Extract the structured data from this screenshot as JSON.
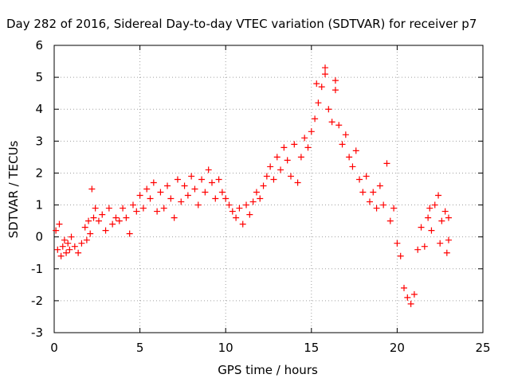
{
  "chart_data": {
    "type": "scatter",
    "title": "Day 282 of 2016, Sidereal Day-to-day VTEC variation (SDTVAR) for receiver p7",
    "xlabel": "GPS time / hours",
    "ylabel": "SDTVAR / TECUs",
    "xlim": [
      0,
      25
    ],
    "ylim": [
      -3,
      6
    ],
    "xticks": [
      0,
      5,
      10,
      15,
      20,
      25
    ],
    "yticks": [
      -3,
      -2,
      -1,
      0,
      1,
      2,
      3,
      4,
      5,
      6
    ],
    "grid": true,
    "legend": "none",
    "marker": "plus",
    "color": "#ff0000",
    "series": [
      {
        "points": [
          [
            0.1,
            0.2
          ],
          [
            0.2,
            -0.4
          ],
          [
            0.3,
            0.4
          ],
          [
            0.4,
            -0.6
          ],
          [
            0.5,
            -0.3
          ],
          [
            0.6,
            -0.1
          ],
          [
            0.7,
            -0.5
          ],
          [
            0.8,
            -0.2
          ],
          [
            0.9,
            -0.4
          ],
          [
            1.0,
            0.0
          ],
          [
            1.2,
            -0.3
          ],
          [
            1.4,
            -0.5
          ],
          [
            1.6,
            -0.2
          ],
          [
            1.8,
            0.3
          ],
          [
            1.9,
            -0.1
          ],
          [
            2.0,
            0.5
          ],
          [
            2.1,
            0.1
          ],
          [
            2.2,
            1.5
          ],
          [
            2.3,
            0.6
          ],
          [
            2.4,
            0.9
          ],
          [
            2.6,
            0.5
          ],
          [
            2.8,
            0.7
          ],
          [
            3.0,
            0.2
          ],
          [
            3.2,
            0.9
          ],
          [
            3.4,
            0.4
          ],
          [
            3.6,
            0.6
          ],
          [
            3.8,
            0.5
          ],
          [
            4.0,
            0.9
          ],
          [
            4.2,
            0.6
          ],
          [
            4.4,
            0.1
          ],
          [
            4.6,
            1.0
          ],
          [
            4.8,
            0.8
          ],
          [
            5.0,
            1.3
          ],
          [
            5.2,
            0.9
          ],
          [
            5.4,
            1.5
          ],
          [
            5.6,
            1.2
          ],
          [
            5.8,
            1.7
          ],
          [
            6.0,
            0.8
          ],
          [
            6.2,
            1.4
          ],
          [
            6.4,
            0.9
          ],
          [
            6.6,
            1.6
          ],
          [
            6.8,
            1.2
          ],
          [
            7.0,
            0.6
          ],
          [
            7.2,
            1.8
          ],
          [
            7.4,
            1.1
          ],
          [
            7.6,
            1.6
          ],
          [
            7.8,
            1.3
          ],
          [
            8.0,
            1.9
          ],
          [
            8.2,
            1.5
          ],
          [
            8.4,
            1.0
          ],
          [
            8.6,
            1.8
          ],
          [
            8.8,
            1.4
          ],
          [
            9.0,
            2.1
          ],
          [
            9.2,
            1.7
          ],
          [
            9.4,
            1.2
          ],
          [
            9.6,
            1.8
          ],
          [
            9.8,
            1.4
          ],
          [
            10.0,
            1.2
          ],
          [
            10.2,
            1.0
          ],
          [
            10.4,
            0.8
          ],
          [
            10.6,
            0.6
          ],
          [
            10.8,
            0.9
          ],
          [
            11.0,
            0.4
          ],
          [
            11.2,
            1.0
          ],
          [
            11.4,
            0.7
          ],
          [
            11.6,
            1.1
          ],
          [
            11.8,
            1.4
          ],
          [
            12.0,
            1.2
          ],
          [
            12.2,
            1.6
          ],
          [
            12.4,
            1.9
          ],
          [
            12.6,
            2.2
          ],
          [
            12.8,
            1.8
          ],
          [
            13.0,
            2.5
          ],
          [
            13.2,
            2.1
          ],
          [
            13.4,
            2.8
          ],
          [
            13.6,
            2.4
          ],
          [
            13.8,
            1.9
          ],
          [
            14.0,
            2.9
          ],
          [
            14.2,
            1.7
          ],
          [
            14.4,
            2.5
          ],
          [
            14.6,
            3.1
          ],
          [
            14.8,
            2.8
          ],
          [
            15.0,
            3.3
          ],
          [
            15.2,
            3.7
          ],
          [
            15.4,
            4.2
          ],
          [
            15.6,
            4.7
          ],
          [
            15.8,
            5.1
          ],
          [
            16.0,
            4.0
          ],
          [
            16.2,
            3.6
          ],
          [
            16.4,
            4.6
          ],
          [
            16.6,
            3.5
          ],
          [
            16.8,
            2.9
          ],
          [
            17.0,
            3.2
          ],
          [
            17.2,
            2.5
          ],
          [
            17.4,
            2.2
          ],
          [
            17.6,
            2.7
          ],
          [
            17.8,
            1.8
          ],
          [
            18.0,
            1.4
          ],
          [
            18.2,
            1.9
          ],
          [
            18.4,
            1.1
          ],
          [
            18.6,
            1.4
          ],
          [
            18.8,
            0.9
          ],
          [
            19.0,
            1.6
          ],
          [
            19.2,
            1.0
          ],
          [
            19.4,
            2.3
          ],
          [
            19.6,
            0.5
          ],
          [
            19.8,
            0.9
          ],
          [
            20.0,
            -0.2
          ],
          [
            20.2,
            -0.6
          ],
          [
            20.4,
            -1.6
          ],
          [
            20.6,
            -1.9
          ],
          [
            20.8,
            -2.1
          ],
          [
            21.0,
            -1.8
          ],
          [
            21.2,
            -0.4
          ],
          [
            21.4,
            0.3
          ],
          [
            21.6,
            -0.3
          ],
          [
            21.8,
            0.6
          ],
          [
            22.0,
            0.2
          ],
          [
            22.2,
            1.0
          ],
          [
            22.4,
            1.3
          ],
          [
            22.6,
            0.5
          ],
          [
            22.8,
            0.8
          ],
          [
            23.0,
            0.6
          ],
          [
            22.9,
            -0.5
          ],
          [
            23.0,
            -0.1
          ],
          [
            22.5,
            -0.2
          ],
          [
            21.9,
            0.9
          ],
          [
            16.4,
            4.9
          ],
          [
            15.8,
            5.3
          ],
          [
            15.3,
            4.8
          ]
        ]
      }
    ]
  }
}
